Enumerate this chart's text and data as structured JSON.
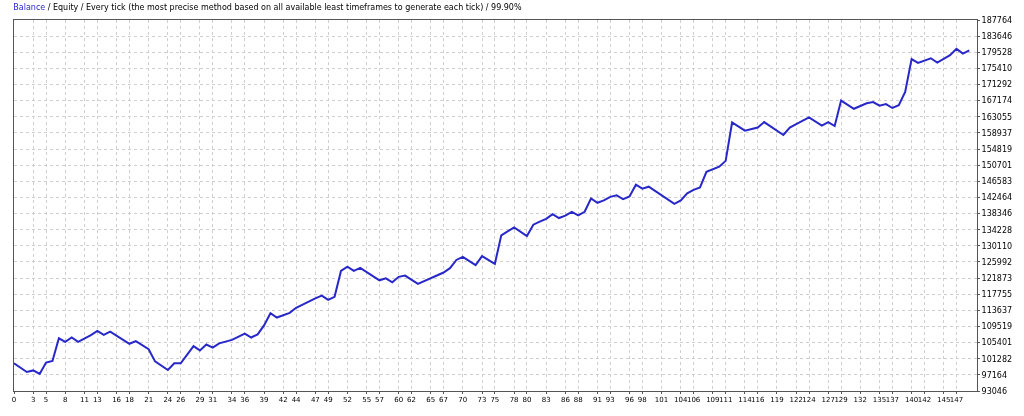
{
  "chart_data": {
    "type": "line",
    "title": "/ Equity / Every tick (the most precise method based on all available least timeframes to generate each tick) / 99.90%",
    "x": [
      0,
      2,
      3,
      4,
      5,
      6,
      7,
      8,
      9,
      10,
      12,
      13,
      14,
      15,
      18,
      19,
      21,
      22,
      24,
      25,
      26,
      28,
      29,
      30,
      31,
      32,
      34,
      36,
      37,
      38,
      39,
      40,
      41,
      43,
      44,
      47,
      48,
      49,
      50,
      51,
      52,
      53,
      54,
      57,
      58,
      59,
      60,
      61,
      63,
      67,
      68,
      69,
      70,
      72,
      73,
      75,
      76,
      77,
      78,
      80,
      81,
      82,
      83,
      84,
      85,
      86,
      87,
      88,
      89,
      90,
      91,
      92,
      93,
      94,
      95,
      96,
      97,
      98,
      99,
      103,
      104,
      105,
      106,
      107,
      108,
      110,
      111,
      112,
      114,
      116,
      117,
      120,
      121,
      122,
      124,
      126,
      127,
      128,
      129,
      131,
      133,
      134,
      135,
      136,
      137,
      138,
      139,
      140,
      141,
      143,
      144,
      146,
      147,
      148,
      149
    ],
    "series": [
      {
        "name": "Balance",
        "color": "#2828c8",
        "values": [
          100100,
          97900,
          98300,
          97400,
          100300,
          100700,
          106500,
          105600,
          106700,
          105600,
          107300,
          108400,
          107400,
          108200,
          105100,
          105800,
          103700,
          100600,
          98400,
          100100,
          100100,
          104500,
          103400,
          104900,
          104100,
          105200,
          106100,
          107700,
          106700,
          107500,
          109800,
          112900,
          111800,
          113000,
          114300,
          116700,
          117400,
          116300,
          117100,
          123700,
          124800,
          123700,
          124500,
          121300,
          121800,
          120800,
          122200,
          122500,
          120400,
          123300,
          124400,
          126500,
          127300,
          125200,
          127500,
          125500,
          132800,
          133800,
          134800,
          132600,
          135500,
          136300,
          137000,
          138200,
          137200,
          137800,
          138800,
          137900,
          138800,
          142200,
          141100,
          141700,
          142600,
          143000,
          142000,
          142700,
          145700,
          144700,
          145200,
          140800,
          141700,
          143500,
          144400,
          145000,
          149000,
          150300,
          151800,
          161600,
          159500,
          160300,
          161700,
          158400,
          160300,
          161200,
          162900,
          160800,
          161700,
          160700,
          167200,
          165100,
          166500,
          166800,
          165900,
          166300,
          165300,
          166000,
          169400,
          177800,
          176800,
          178000,
          176900,
          178800,
          180400,
          179200,
          180000
        ]
      }
    ],
    "xlim": [
      0,
      150.2
    ],
    "xticks": [
      0,
      3,
      5,
      8,
      11,
      13,
      16,
      18,
      21,
      24,
      26,
      29,
      31,
      34,
      36,
      39,
      42,
      44,
      47,
      49,
      52,
      55,
      57,
      60,
      62,
      65,
      67,
      70,
      73,
      75,
      78,
      80,
      83,
      86,
      88,
      91,
      93,
      96,
      98,
      101,
      104,
      106,
      109,
      111,
      114,
      116,
      119,
      122,
      124,
      127,
      129,
      132,
      135,
      137,
      140,
      142,
      145,
      147
    ],
    "ylim": [
      93046,
      187764
    ],
    "yticks": [
      93046,
      97164,
      101282,
      105401,
      109519,
      113637,
      117755,
      121873,
      125992,
      130110,
      134228,
      138346,
      142464,
      146583,
      150701,
      154819,
      158937,
      163055,
      167174,
      171292,
      175410,
      179528,
      183646,
      187764
    ],
    "grid": true,
    "line_style": "solid",
    "marker": "none"
  }
}
